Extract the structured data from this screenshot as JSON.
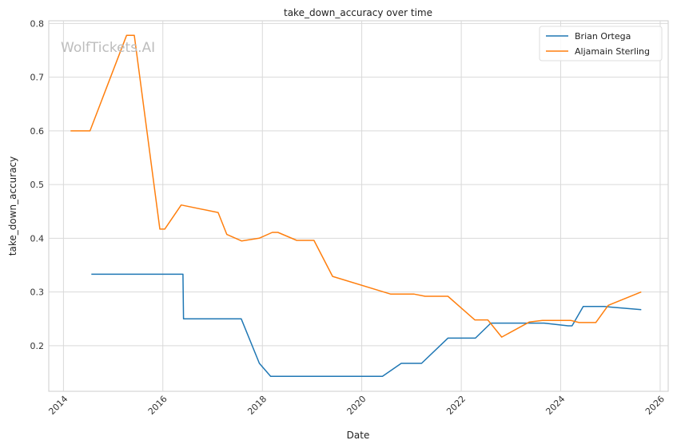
{
  "chart_data": {
    "type": "line",
    "title": "take_down_accuracy over time",
    "xlabel": "Date",
    "ylabel": "take_down_accuracy",
    "watermark": "WolfTickets.AI",
    "xlim": [
      "2013-09-15",
      "2026-03-01"
    ],
    "ylim": [
      0.115,
      0.805
    ],
    "x_ticks": [
      "2014",
      "2016",
      "2018",
      "2020",
      "2022",
      "2024",
      "2026"
    ],
    "y_ticks": [
      "0.2",
      "0.3",
      "0.4",
      "0.5",
      "0.6",
      "0.7",
      "0.8"
    ],
    "grid": true,
    "legend_position": "top-right",
    "series": [
      {
        "name": "Brian Ortega",
        "color": "#1f77b4",
        "points": [
          [
            "2014-07-25",
            0.333
          ],
          [
            "2016-05-28",
            0.333
          ],
          [
            "2016-06-01",
            0.25
          ],
          [
            "2017-07-30",
            0.25
          ],
          [
            "2017-12-10",
            0.167
          ],
          [
            "2018-03-03",
            0.143
          ],
          [
            "2020-06-01",
            0.143
          ],
          [
            "2020-10-17",
            0.167
          ],
          [
            "2021-03-15",
            0.167
          ],
          [
            "2021-09-25",
            0.214
          ],
          [
            "2022-04-15",
            0.214
          ],
          [
            "2022-08-06",
            0.242
          ],
          [
            "2023-09-01",
            0.242
          ],
          [
            "2024-02-25",
            0.237
          ],
          [
            "2024-03-25",
            0.237
          ],
          [
            "2024-06-15",
            0.273
          ],
          [
            "2024-11-15",
            0.273
          ],
          [
            "2025-08-15",
            0.267
          ]
        ]
      },
      {
        "name": "Aljamain Sterling",
        "color": "#ff7f0e",
        "points": [
          [
            "2014-02-22",
            0.6
          ],
          [
            "2014-07-15",
            0.6
          ],
          [
            "2015-04-10",
            0.778
          ],
          [
            "2015-06-05",
            0.778
          ],
          [
            "2015-12-10",
            0.417
          ],
          [
            "2016-01-15",
            0.417
          ],
          [
            "2016-05-15",
            0.462
          ],
          [
            "2017-02-10",
            0.448
          ],
          [
            "2017-04-15",
            0.407
          ],
          [
            "2017-08-01",
            0.395
          ],
          [
            "2017-12-09",
            0.4
          ],
          [
            "2018-03-15",
            0.411
          ],
          [
            "2018-04-25",
            0.411
          ],
          [
            "2018-09-10",
            0.396
          ],
          [
            "2019-01-15",
            0.396
          ],
          [
            "2019-06-01",
            0.329
          ],
          [
            "2020-08-01",
            0.296
          ],
          [
            "2021-01-20",
            0.296
          ],
          [
            "2021-04-10",
            0.292
          ],
          [
            "2021-09-25",
            0.292
          ],
          [
            "2022-04-10",
            0.248
          ],
          [
            "2022-07-15",
            0.248
          ],
          [
            "2022-10-25",
            0.216
          ],
          [
            "2023-05-15",
            0.244
          ],
          [
            "2023-08-20",
            0.247
          ],
          [
            "2024-03-15",
            0.247
          ],
          [
            "2024-05-15",
            0.243
          ],
          [
            "2024-09-15",
            0.243
          ],
          [
            "2024-12-15",
            0.275
          ],
          [
            "2025-08-15",
            0.3
          ]
        ]
      }
    ]
  }
}
